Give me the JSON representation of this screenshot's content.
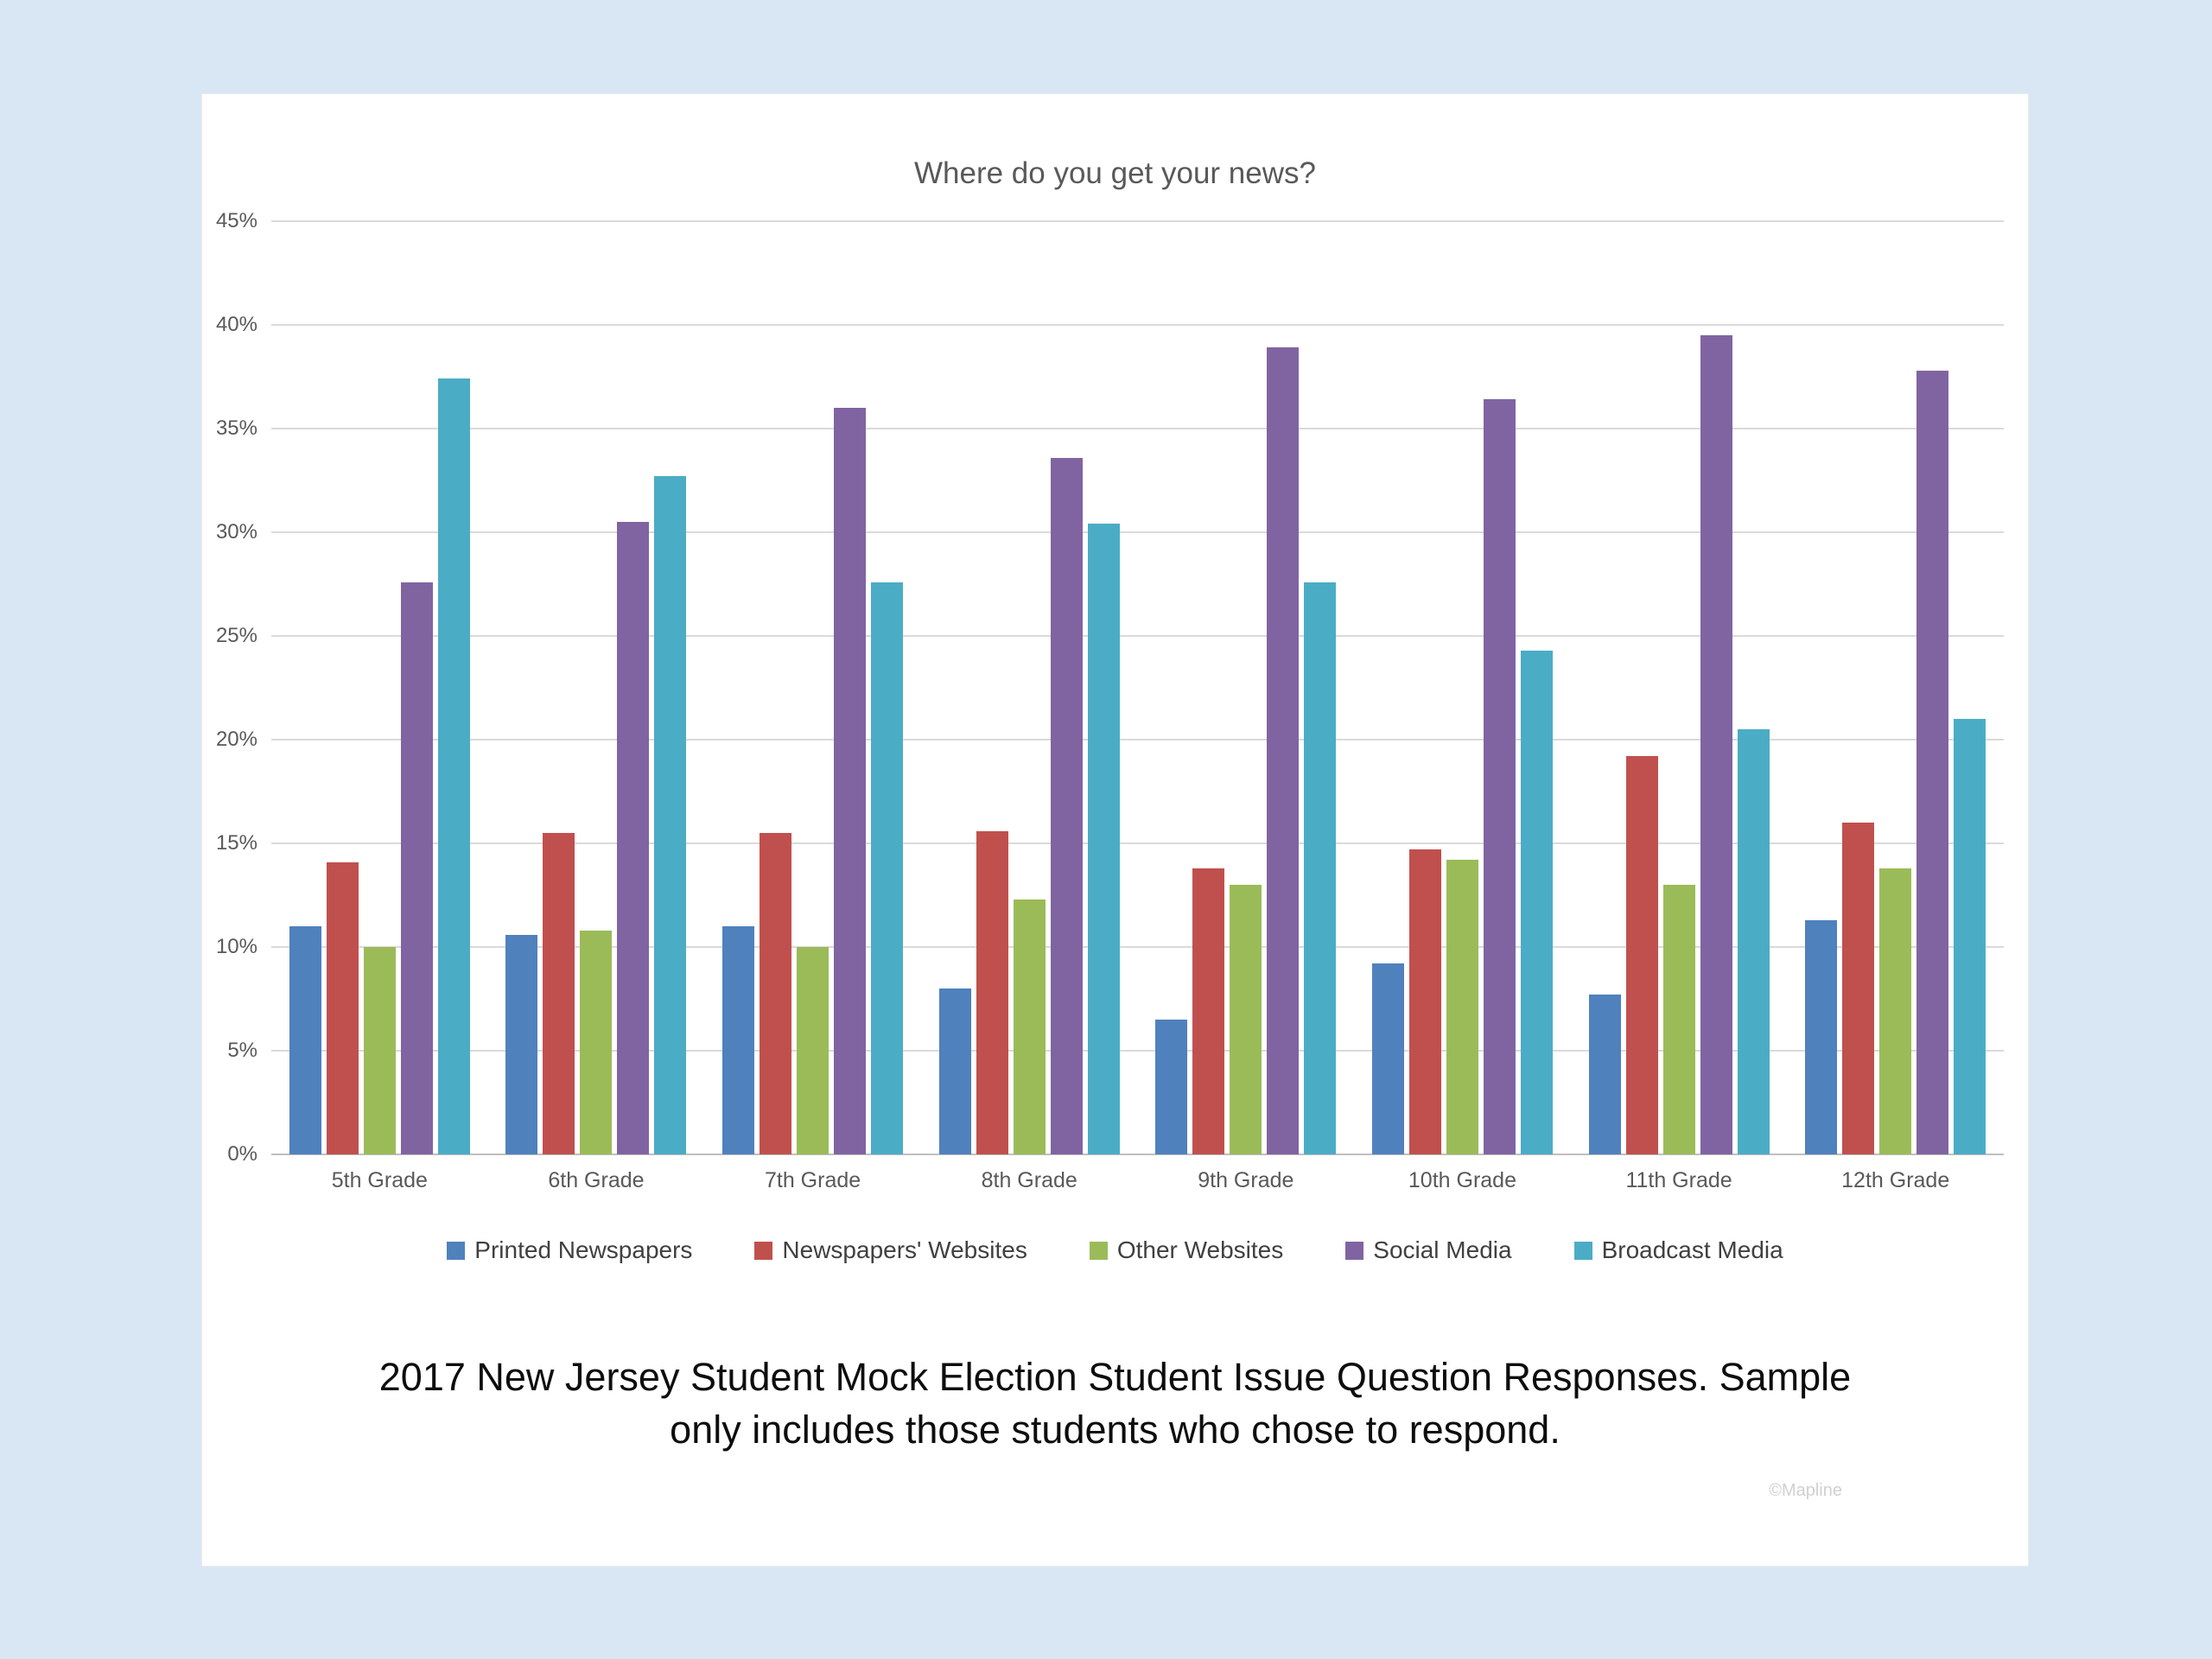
{
  "page": {
    "background_color": "#d9e7f5",
    "card_color": "#ffffff"
  },
  "chart_data": {
    "type": "bar",
    "title": "Where do you get your news?",
    "categories": [
      "5th Grade",
      "6th Grade",
      "7th Grade",
      "8th Grade",
      "9th Grade",
      "10th Grade",
      "11th Grade",
      "12th Grade"
    ],
    "series": [
      {
        "name": "Printed Newspapers",
        "color": "#4F81BD",
        "values": [
          11.0,
          10.6,
          11.0,
          8.0,
          6.5,
          9.2,
          7.7,
          11.3
        ]
      },
      {
        "name": "Newspapers' Websites",
        "color": "#C0504D",
        "values": [
          14.1,
          15.5,
          15.5,
          15.6,
          13.8,
          14.7,
          19.2,
          16.0
        ]
      },
      {
        "name": "Other Websites",
        "color": "#9BBB59",
        "values": [
          10.0,
          10.8,
          10.0,
          12.3,
          13.0,
          14.2,
          13.0,
          13.8
        ]
      },
      {
        "name": "Social Media",
        "color": "#8064A2",
        "values": [
          27.6,
          30.5,
          36.0,
          33.6,
          38.9,
          36.4,
          39.5,
          37.8
        ]
      },
      {
        "name": "Broadcast Media",
        "color": "#4BACC6",
        "values": [
          37.4,
          32.7,
          27.6,
          30.4,
          27.6,
          24.3,
          20.5,
          21.0
        ]
      }
    ],
    "ylim": [
      0,
      45
    ],
    "ytick_step": 5,
    "ytick_labels": [
      "0%",
      "5%",
      "10%",
      "15%",
      "20%",
      "25%",
      "30%",
      "35%",
      "40%",
      "45%"
    ],
    "grid": true,
    "legend_position": "bottom"
  },
  "caption": {
    "line1": "2017 New Jersey Student Mock Election Student Issue Question Responses. Sample",
    "line2": "only includes those students who chose to respond."
  },
  "watermark": "©Mapline"
}
